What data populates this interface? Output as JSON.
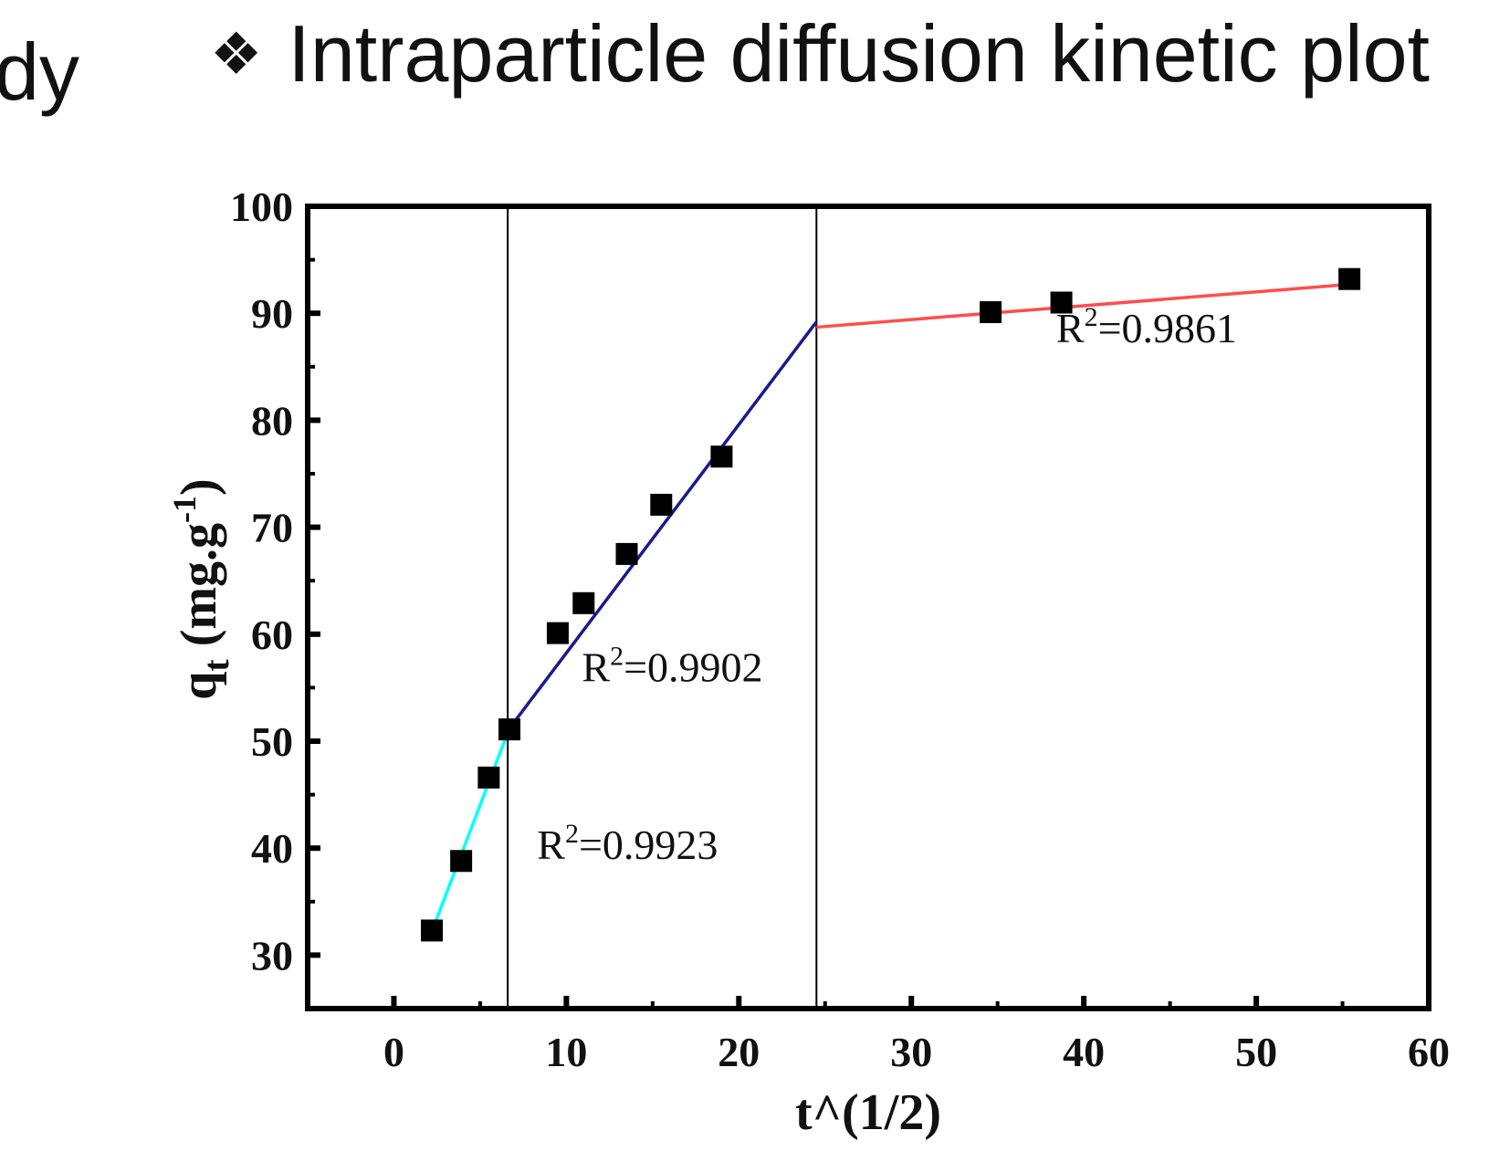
{
  "page": {
    "title": "Intraparticle diffusion kinetic plot",
    "title_bullet": "❖",
    "cut_text": "dy"
  },
  "chart_data": {
    "type": "scatter",
    "title": "",
    "xlabel": "t^(1/2)",
    "ylabel": "qt (mg.g-1)",
    "xlim": [
      -5,
      60
    ],
    "ylim": [
      25,
      100
    ],
    "xticks": [
      0,
      10,
      20,
      30,
      40,
      50,
      60
    ],
    "yticks": [
      30,
      40,
      50,
      60,
      70,
      80,
      90,
      100
    ],
    "grid": false,
    "points": {
      "x": [
        2.2,
        3.9,
        5.5,
        6.7,
        9.5,
        11.0,
        13.5,
        15.5,
        19.0,
        34.6,
        38.7,
        55.4
      ],
      "y": [
        32.3,
        38.8,
        46.6,
        51.1,
        60.1,
        62.9,
        67.5,
        72.1,
        76.6,
        90.1,
        91.0,
        93.2
      ],
      "marker": "square",
      "color": "#000000"
    },
    "fit_lines": [
      {
        "x": [
          2.2,
          6.7
        ],
        "y": [
          32.2,
          51.2
        ],
        "color": "#00ffff",
        "r2_label": "R2=0.9923"
      },
      {
        "x": [
          6.7,
          24.5
        ],
        "y": [
          51.2,
          89.2
        ],
        "color": "#1a1a8c",
        "r2_label": "R2=0.9902"
      },
      {
        "x": [
          24.5,
          55.4
        ],
        "y": [
          88.7,
          92.7
        ],
        "color": "#ff4d4d",
        "r2_label": "R2=0.9861"
      }
    ],
    "vertical_lines": [
      6.6,
      24.5
    ],
    "annotations": [
      {
        "x": 8.3,
        "y": 39.0,
        "base": "R",
        "sup": "2",
        "rest": "=0.9923"
      },
      {
        "x": 10.9,
        "y": 55.6,
        "base": "R",
        "sup": "2",
        "rest": "=0.9902"
      },
      {
        "x": 38.4,
        "y": 87.3,
        "base": "R",
        "sup": "2",
        "rest": "=0.9861"
      }
    ]
  }
}
